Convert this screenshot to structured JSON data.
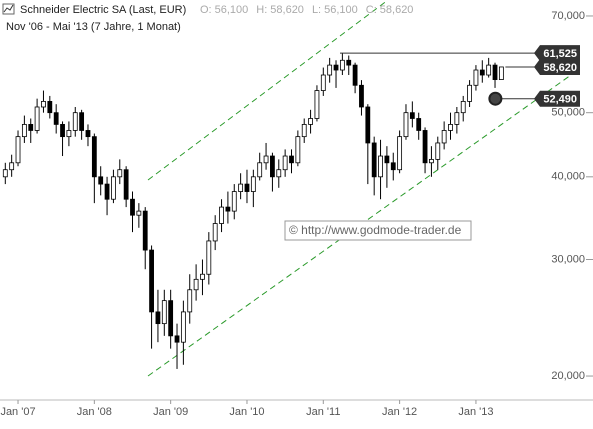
{
  "chart_data": {
    "type": "candlestick",
    "title": "Schneider Electric SA (Last, EUR)",
    "subtitle": "Nov '06 - Mai '13 (7 Jahre, 1 Monat)",
    "ohlc_header": [
      {
        "name": "O:",
        "value": 56100,
        "label": "56,100"
      },
      {
        "name": "H:",
        "value": 58620,
        "label": "58,620"
      },
      {
        "name": "L:",
        "value": 56100,
        "label": "56,100"
      },
      {
        "name": "C:",
        "value": 58620,
        "label": "58,620"
      }
    ],
    "watermark": "© http://www.godmode-trader.de",
    "log_scale": true,
    "ylim": [
      18400,
      74000
    ],
    "yticks": [
      {
        "value": 20000,
        "label": "20,000"
      },
      {
        "value": 30000,
        "label": "30,000"
      },
      {
        "value": 40000,
        "label": "40,000"
      },
      {
        "value": 50000,
        "label": "50,000"
      },
      {
        "value": 70000,
        "label": "70,000"
      }
    ],
    "xticks": [
      {
        "value": "2007-01",
        "label": "Jan '07"
      },
      {
        "value": "2008-01",
        "label": "Jan '08"
      },
      {
        "value": "2009-01",
        "label": "Jan '09"
      },
      {
        "value": "2010-01",
        "label": "Jan '10"
      },
      {
        "value": "2011-01",
        "label": "Jan '11"
      },
      {
        "value": "2012-01",
        "label": "Jan '12"
      },
      {
        "value": "2013-01",
        "label": "Jan '13"
      }
    ],
    "price_labels": [
      {
        "value": 61525,
        "label": "61,525"
      },
      {
        "value": 58620,
        "label": "58,620"
      },
      {
        "value": 52490,
        "label": "52,490"
      }
    ],
    "up_color": "#ffffff",
    "down_color": "#000000",
    "x": [
      "2006-11",
      "2006-12",
      "2007-01",
      "2007-02",
      "2007-03",
      "2007-04",
      "2007-05",
      "2007-06",
      "2007-07",
      "2007-08",
      "2007-09",
      "2007-10",
      "2007-11",
      "2007-12",
      "2008-01",
      "2008-02",
      "2008-03",
      "2008-04",
      "2008-05",
      "2008-06",
      "2008-07",
      "2008-08",
      "2008-09",
      "2008-10",
      "2008-11",
      "2008-12",
      "2009-01",
      "2009-02",
      "2009-03",
      "2009-04",
      "2009-05",
      "2009-06",
      "2009-07",
      "2009-08",
      "2009-09",
      "2009-10",
      "2009-11",
      "2009-12",
      "2010-01",
      "2010-02",
      "2010-03",
      "2010-04",
      "2010-05",
      "2010-06",
      "2010-07",
      "2010-08",
      "2010-09",
      "2010-10",
      "2010-11",
      "2010-12",
      "2011-01",
      "2011-02",
      "2011-03",
      "2011-04",
      "2011-05",
      "2011-06",
      "2011-07",
      "2011-08",
      "2011-09",
      "2011-10",
      "2011-11",
      "2011-12",
      "2012-01",
      "2012-02",
      "2012-03",
      "2012-04",
      "2012-05",
      "2012-06",
      "2012-07",
      "2012-08",
      "2012-09",
      "2012-10",
      "2012-11",
      "2012-12",
      "2013-01",
      "2013-02",
      "2013-03",
      "2013-04",
      "2013-05"
    ],
    "open": [
      40000,
      41000,
      42000,
      46000,
      48000,
      47000,
      51000,
      52000,
      50000,
      48000,
      46000,
      47000,
      50000,
      47000,
      46000,
      40000,
      39000,
      37000,
      40000,
      41000,
      37000,
      35000,
      35500,
      31000,
      25000,
      24000,
      26000,
      23000,
      22500,
      25000,
      27000,
      28000,
      28500,
      32000,
      34000,
      36000,
      35500,
      38000,
      39000,
      38000,
      40000,
      42000,
      43000,
      40000,
      41000,
      43000,
      42000,
      46000,
      48000,
      49000,
      54000,
      57000,
      59000,
      58000,
      60000,
      59000,
      55000,
      51000,
      45000,
      40000,
      43000,
      42000,
      41000,
      46000,
      50000,
      49000,
      47000,
      42000,
      42500,
      45000,
      47000,
      48000,
      50000,
      52000,
      55000,
      58000,
      57000,
      59000,
      56100
    ],
    "high": [
      42000,
      43200,
      47000,
      49500,
      49000,
      52500,
      54000,
      53000,
      51500,
      48500,
      48500,
      51000,
      50500,
      48000,
      46500,
      41500,
      40000,
      41000,
      42500,
      41500,
      38000,
      36500,
      36000,
      31500,
      27000,
      27000,
      27000,
      24000,
      26000,
      28500,
      29500,
      30000,
      33000,
      35000,
      37000,
      38000,
      39000,
      40500,
      41000,
      41000,
      43500,
      45000,
      43500,
      42500,
      44000,
      44000,
      47000,
      49000,
      50500,
      55000,
      58500,
      60500,
      60000,
      61525,
      61000,
      59500,
      56000,
      51500,
      46000,
      45500,
      44500,
      43500,
      47000,
      51500,
      52000,
      50000,
      47500,
      44500,
      46000,
      48500,
      50000,
      51000,
      53000,
      56000,
      59000,
      60000,
      60500,
      59500,
      58620
    ],
    "low": [
      39000,
      40000,
      41500,
      45000,
      45000,
      46500,
      50000,
      49000,
      46500,
      43000,
      44500,
      46000,
      45500,
      44500,
      36500,
      37500,
      35000,
      36500,
      39000,
      36000,
      33000,
      33500,
      29000,
      22000,
      22500,
      23000,
      22000,
      20500,
      20800,
      24000,
      26000,
      26500,
      27500,
      31000,
      33000,
      34000,
      34500,
      37000,
      36500,
      36000,
      39500,
      41000,
      38000,
      38500,
      40000,
      40500,
      41500,
      45000,
      46500,
      48500,
      53000,
      55500,
      54500,
      57000,
      57000,
      53500,
      49500,
      39000,
      37500,
      37000,
      38500,
      39500,
      40500,
      45500,
      47500,
      45500,
      40500,
      40000,
      41000,
      44000,
      45500,
      46500,
      48500,
      51000,
      54000,
      55500,
      56500,
      54500,
      56100
    ],
    "close": [
      41000,
      42000,
      46000,
      48000,
      47000,
      51000,
      52000,
      50000,
      48000,
      46000,
      47000,
      50000,
      47000,
      46000,
      40000,
      39000,
      37000,
      40000,
      41000,
      37000,
      35000,
      35500,
      31000,
      25000,
      24000,
      26000,
      23000,
      22500,
      25000,
      27000,
      28000,
      28500,
      32000,
      34000,
      36000,
      35500,
      38000,
      39000,
      38000,
      40000,
      42000,
      43000,
      40000,
      41000,
      43000,
      42000,
      46000,
      48000,
      49000,
      54000,
      57000,
      59000,
      58000,
      60000,
      59000,
      55000,
      51000,
      45000,
      40000,
      43000,
      42000,
      41000,
      46000,
      50000,
      49000,
      47000,
      42000,
      42500,
      45000,
      47000,
      48000,
      50000,
      52000,
      55000,
      58000,
      57000,
      59000,
      56100,
      58620
    ]
  }
}
